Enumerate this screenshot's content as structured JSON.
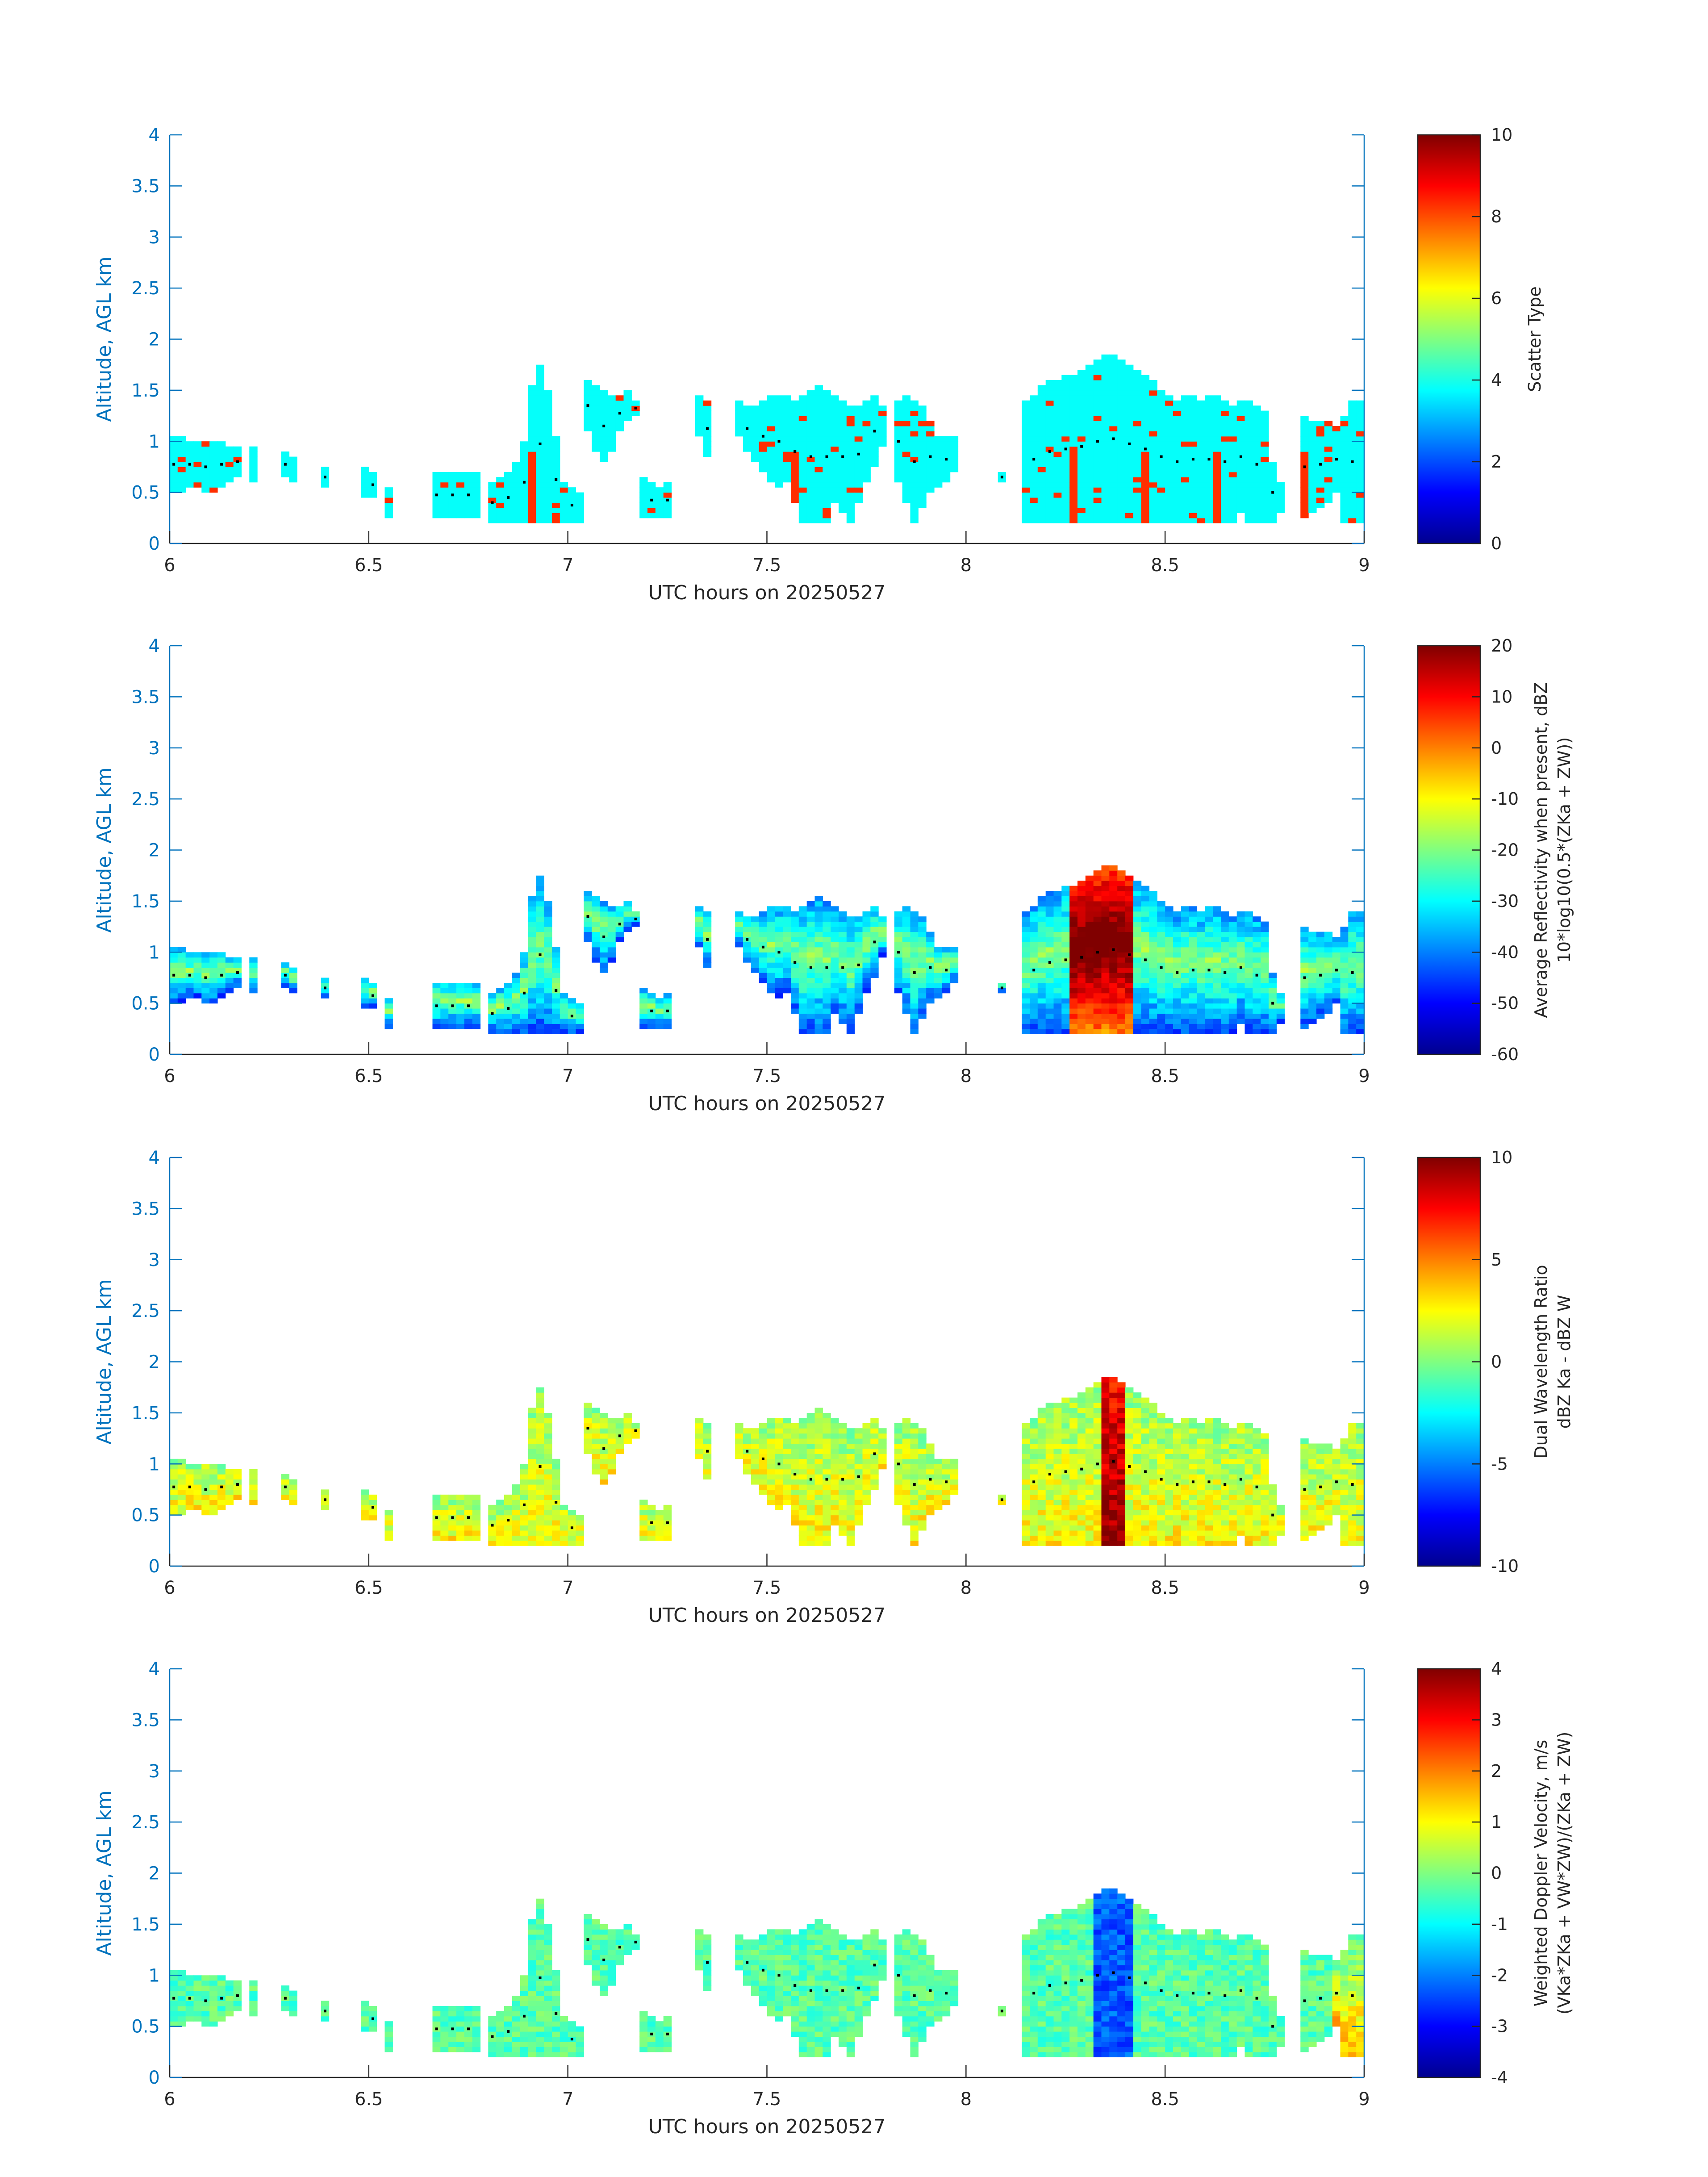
{
  "figure": {
    "panels": [
      {
        "id": "scatter-type",
        "ylabel": "Altitude, AGL km",
        "xlabel": "UTC hours on 20250527",
        "yticks": [
          "0",
          "0.5",
          "1",
          "1.5",
          "2",
          "2.5",
          "3",
          "3.5",
          "4"
        ],
        "xticks": [
          "6",
          "6.5",
          "7",
          "7.5",
          "8",
          "8.5",
          "9"
        ],
        "colorbar": {
          "label_lines": [
            "Scatter Type"
          ],
          "ticks": [
            "0",
            "2",
            "4",
            "6",
            "8",
            "10"
          ],
          "range": [
            0,
            10
          ]
        }
      },
      {
        "id": "reflectivity",
        "ylabel": "Altitude, AGL km",
        "xlabel": "UTC hours on 20250527",
        "yticks": [
          "0",
          "0.5",
          "1",
          "1.5",
          "2",
          "2.5",
          "3",
          "3.5",
          "4"
        ],
        "xticks": [
          "6",
          "6.5",
          "7",
          "7.5",
          "8",
          "8.5",
          "9"
        ],
        "colorbar": {
          "label_lines": [
            "Average Reflectivity when present, dBZ",
            "10*log10(0.5*(ZKa + ZW))"
          ],
          "ticks": [
            "-60",
            "-50",
            "-40",
            "-30",
            "-20",
            "-10",
            "0",
            "10",
            "20"
          ],
          "range": [
            -60,
            20
          ]
        }
      },
      {
        "id": "dwr",
        "ylabel": "Altitude, AGL km",
        "xlabel": "UTC hours on 20250527",
        "yticks": [
          "0",
          "0.5",
          "1",
          "1.5",
          "2",
          "2.5",
          "3",
          "3.5",
          "4"
        ],
        "xticks": [
          "6",
          "6.5",
          "7",
          "7.5",
          "8",
          "8.5",
          "9"
        ],
        "colorbar": {
          "label_lines": [
            "Dual Wavelength Ratio",
            "dBZ Ka - dBZ W"
          ],
          "ticks": [
            "-10",
            "-5",
            "0",
            "5",
            "10"
          ],
          "range": [
            -10,
            10
          ]
        }
      },
      {
        "id": "doppler",
        "ylabel": "Altitude, AGL km",
        "xlabel": "UTC hours on 20250527",
        "yticks": [
          "0",
          "0.5",
          "1",
          "1.5",
          "2",
          "2.5",
          "3",
          "3.5",
          "4"
        ],
        "xticks": [
          "6",
          "6.5",
          "7",
          "7.5",
          "8",
          "8.5",
          "9"
        ],
        "colorbar": {
          "label_lines": [
            "Weighted Doppler Velocity, m/s",
            "(VKa*ZKa + VW*ZW)/(ZKa + ZW)"
          ],
          "ticks": [
            "-4",
            "-3",
            "-2",
            "-1",
            "0",
            "1",
            "2",
            "3",
            "4"
          ],
          "range": [
            -4,
            4
          ]
        }
      }
    ]
  },
  "chart_data": [
    {
      "type": "heatmap",
      "xlabel": "UTC hours on 20250527",
      "ylabel": "Altitude, AGL km",
      "xlim": [
        6,
        9
      ],
      "ylim": [
        0,
        4
      ],
      "colormap": "jet",
      "clim": [
        0,
        10
      ],
      "colorbar_label": "Scatter Type",
      "dominant_value": 3.8,
      "notes_values": {
        "cloud": 3.8,
        "precip_columns": 8.3
      }
    },
    {
      "type": "heatmap",
      "xlabel": "UTC hours on 20250527",
      "ylabel": "Altitude, AGL km",
      "xlim": [
        6,
        9
      ],
      "ylim": [
        0,
        4
      ],
      "colormap": "jet",
      "clim": [
        -60,
        20
      ],
      "colorbar_label": "Average Reflectivity when present, dBZ"
    },
    {
      "type": "heatmap",
      "xlabel": "UTC hours on 20250527",
      "ylabel": "Altitude, AGL km",
      "xlim": [
        6,
        9
      ],
      "ylim": [
        0,
        4
      ],
      "colormap": "jet",
      "clim": [
        -10,
        10
      ],
      "colorbar_label": "Dual Wavelength Ratio"
    },
    {
      "type": "heatmap",
      "xlabel": "UTC hours on 20250527",
      "ylabel": "Altitude, AGL km",
      "xlim": [
        6,
        9
      ],
      "ylim": [
        0,
        4
      ],
      "colormap": "jet",
      "clim": [
        -4,
        4
      ],
      "colorbar_label": "Weighted Doppler Velocity, m/s"
    }
  ],
  "cloud_mask": {
    "time_step_hours": 0.02,
    "columns": [
      {
        "t": 6.0,
        "lo": 0.5,
        "hi": 1.05
      },
      {
        "t": 6.02,
        "lo": 0.5,
        "hi": 1.05
      },
      {
        "t": 6.04,
        "lo": 0.55,
        "hi": 1.0
      },
      {
        "t": 6.06,
        "lo": 0.55,
        "hi": 1.0
      },
      {
        "t": 6.08,
        "lo": 0.5,
        "hi": 1.0
      },
      {
        "t": 6.1,
        "lo": 0.5,
        "hi": 1.0
      },
      {
        "t": 6.12,
        "lo": 0.55,
        "hi": 1.0
      },
      {
        "t": 6.14,
        "lo": 0.6,
        "hi": 0.95
      },
      {
        "t": 6.16,
        "lo": 0.65,
        "hi": 0.95
      },
      {
        "t": 6.2,
        "lo": 0.6,
        "hi": 0.95
      },
      {
        "t": 6.28,
        "lo": 0.65,
        "hi": 0.9
      },
      {
        "t": 6.3,
        "lo": 0.6,
        "hi": 0.85
      },
      {
        "t": 6.38,
        "lo": 0.55,
        "hi": 0.75
      },
      {
        "t": 6.48,
        "lo": 0.45,
        "hi": 0.75
      },
      {
        "t": 6.5,
        "lo": 0.45,
        "hi": 0.7
      },
      {
        "t": 6.54,
        "lo": 0.25,
        "hi": 0.55
      },
      {
        "t": 6.66,
        "lo": 0.25,
        "hi": 0.7
      },
      {
        "t": 6.68,
        "lo": 0.25,
        "hi": 0.7
      },
      {
        "t": 6.7,
        "lo": 0.25,
        "hi": 0.7
      },
      {
        "t": 6.72,
        "lo": 0.25,
        "hi": 0.7
      },
      {
        "t": 6.74,
        "lo": 0.25,
        "hi": 0.7
      },
      {
        "t": 6.76,
        "lo": 0.25,
        "hi": 0.7
      },
      {
        "t": 6.8,
        "lo": 0.2,
        "hi": 0.6
      },
      {
        "t": 6.82,
        "lo": 0.2,
        "hi": 0.65
      },
      {
        "t": 6.84,
        "lo": 0.2,
        "hi": 0.7
      },
      {
        "t": 6.86,
        "lo": 0.2,
        "hi": 0.8
      },
      {
        "t": 6.88,
        "lo": 0.2,
        "hi": 1.0
      },
      {
        "t": 6.9,
        "lo": 0.2,
        "hi": 1.55
      },
      {
        "t": 6.92,
        "lo": 0.2,
        "hi": 1.75
      },
      {
        "t": 6.94,
        "lo": 0.2,
        "hi": 1.5
      },
      {
        "t": 6.96,
        "lo": 0.2,
        "hi": 1.05
      },
      {
        "t": 6.98,
        "lo": 0.2,
        "hi": 0.6
      },
      {
        "t": 7.0,
        "lo": 0.2,
        "hi": 0.55
      },
      {
        "t": 7.02,
        "lo": 0.2,
        "hi": 0.5
      },
      {
        "t": 7.04,
        "lo": 1.1,
        "hi": 1.6
      },
      {
        "t": 7.06,
        "lo": 0.9,
        "hi": 1.55
      },
      {
        "t": 7.08,
        "lo": 0.8,
        "hi": 1.5
      },
      {
        "t": 7.1,
        "lo": 0.9,
        "hi": 1.45
      },
      {
        "t": 7.12,
        "lo": 1.1,
        "hi": 1.45
      },
      {
        "t": 7.14,
        "lo": 1.2,
        "hi": 1.5
      },
      {
        "t": 7.16,
        "lo": 1.25,
        "hi": 1.4
      },
      {
        "t": 7.18,
        "lo": 0.25,
        "hi": 0.65
      },
      {
        "t": 7.2,
        "lo": 0.25,
        "hi": 0.6
      },
      {
        "t": 7.22,
        "lo": 0.25,
        "hi": 0.55
      },
      {
        "t": 7.24,
        "lo": 0.25,
        "hi": 0.6
      },
      {
        "t": 7.32,
        "lo": 1.05,
        "hi": 1.45
      },
      {
        "t": 7.34,
        "lo": 0.85,
        "hi": 1.4
      },
      {
        "t": 7.42,
        "lo": 1.05,
        "hi": 1.4
      },
      {
        "t": 7.44,
        "lo": 0.9,
        "hi": 1.35
      },
      {
        "t": 7.46,
        "lo": 0.8,
        "hi": 1.35
      },
      {
        "t": 7.48,
        "lo": 0.7,
        "hi": 1.4
      },
      {
        "t": 7.5,
        "lo": 0.6,
        "hi": 1.45
      },
      {
        "t": 7.52,
        "lo": 0.55,
        "hi": 1.45
      },
      {
        "t": 7.54,
        "lo": 0.6,
        "hi": 1.45
      },
      {
        "t": 7.56,
        "lo": 0.4,
        "hi": 1.4
      },
      {
        "t": 7.58,
        "lo": 0.2,
        "hi": 1.45
      },
      {
        "t": 7.6,
        "lo": 0.2,
        "hi": 1.5
      },
      {
        "t": 7.62,
        "lo": 0.2,
        "hi": 1.55
      },
      {
        "t": 7.64,
        "lo": 0.2,
        "hi": 1.5
      },
      {
        "t": 7.66,
        "lo": 0.4,
        "hi": 1.45
      },
      {
        "t": 7.68,
        "lo": 0.3,
        "hi": 1.4
      },
      {
        "t": 7.7,
        "lo": 0.2,
        "hi": 1.35
      },
      {
        "t": 7.72,
        "lo": 0.4,
        "hi": 1.35
      },
      {
        "t": 7.74,
        "lo": 0.6,
        "hi": 1.4
      },
      {
        "t": 7.76,
        "lo": 0.75,
        "hi": 1.45
      },
      {
        "t": 7.78,
        "lo": 0.95,
        "hi": 1.35
      },
      {
        "t": 7.82,
        "lo": 0.6,
        "hi": 1.4
      },
      {
        "t": 7.84,
        "lo": 0.4,
        "hi": 1.45
      },
      {
        "t": 7.86,
        "lo": 0.2,
        "hi": 1.4
      },
      {
        "t": 7.88,
        "lo": 0.35,
        "hi": 1.35
      },
      {
        "t": 7.9,
        "lo": 0.5,
        "hi": 1.2
      },
      {
        "t": 7.92,
        "lo": 0.55,
        "hi": 1.05
      },
      {
        "t": 7.94,
        "lo": 0.6,
        "hi": 1.05
      },
      {
        "t": 7.96,
        "lo": 0.7,
        "hi": 1.05
      },
      {
        "t": 8.08,
        "lo": 0.6,
        "hi": 0.7
      },
      {
        "t": 8.14,
        "lo": 0.2,
        "hi": 1.4
      },
      {
        "t": 8.16,
        "lo": 0.2,
        "hi": 1.45
      },
      {
        "t": 8.18,
        "lo": 0.2,
        "hi": 1.55
      },
      {
        "t": 8.2,
        "lo": 0.2,
        "hi": 1.6
      },
      {
        "t": 8.22,
        "lo": 0.2,
        "hi": 1.6
      },
      {
        "t": 8.24,
        "lo": 0.2,
        "hi": 1.65
      },
      {
        "t": 8.26,
        "lo": 0.2,
        "hi": 1.65
      },
      {
        "t": 8.28,
        "lo": 0.2,
        "hi": 1.7
      },
      {
        "t": 8.3,
        "lo": 0.2,
        "hi": 1.75
      },
      {
        "t": 8.32,
        "lo": 0.2,
        "hi": 1.8
      },
      {
        "t": 8.34,
        "lo": 0.2,
        "hi": 1.85
      },
      {
        "t": 8.36,
        "lo": 0.2,
        "hi": 1.85
      },
      {
        "t": 8.38,
        "lo": 0.2,
        "hi": 1.8
      },
      {
        "t": 8.4,
        "lo": 0.2,
        "hi": 1.75
      },
      {
        "t": 8.42,
        "lo": 0.2,
        "hi": 1.7
      },
      {
        "t": 8.44,
        "lo": 0.2,
        "hi": 1.65
      },
      {
        "t": 8.46,
        "lo": 0.2,
        "hi": 1.6
      },
      {
        "t": 8.48,
        "lo": 0.2,
        "hi": 1.5
      },
      {
        "t": 8.5,
        "lo": 0.2,
        "hi": 1.45
      },
      {
        "t": 8.52,
        "lo": 0.2,
        "hi": 1.4
      },
      {
        "t": 8.54,
        "lo": 0.2,
        "hi": 1.45
      },
      {
        "t": 8.56,
        "lo": 0.2,
        "hi": 1.45
      },
      {
        "t": 8.58,
        "lo": 0.2,
        "hi": 1.4
      },
      {
        "t": 8.6,
        "lo": 0.2,
        "hi": 1.45
      },
      {
        "t": 8.62,
        "lo": 0.2,
        "hi": 1.45
      },
      {
        "t": 8.64,
        "lo": 0.2,
        "hi": 1.4
      },
      {
        "t": 8.66,
        "lo": 0.2,
        "hi": 1.35
      },
      {
        "t": 8.68,
        "lo": 0.3,
        "hi": 1.4
      },
      {
        "t": 8.7,
        "lo": 0.2,
        "hi": 1.4
      },
      {
        "t": 8.72,
        "lo": 0.2,
        "hi": 1.35
      },
      {
        "t": 8.74,
        "lo": 0.2,
        "hi": 1.3
      },
      {
        "t": 8.76,
        "lo": 0.2,
        "hi": 0.8
      },
      {
        "t": 8.78,
        "lo": 0.3,
        "hi": 0.6
      },
      {
        "t": 8.84,
        "lo": 0.25,
        "hi": 1.25
      },
      {
        "t": 8.86,
        "lo": 0.3,
        "hi": 1.2
      },
      {
        "t": 8.88,
        "lo": 0.35,
        "hi": 1.2
      },
      {
        "t": 8.9,
        "lo": 0.4,
        "hi": 1.2
      },
      {
        "t": 8.92,
        "lo": 0.5,
        "hi": 1.15
      },
      {
        "t": 8.94,
        "lo": 0.2,
        "hi": 1.25
      },
      {
        "t": 8.96,
        "lo": 0.2,
        "hi": 1.4
      },
      {
        "t": 8.98,
        "lo": 0.2,
        "hi": 1.4
      }
    ]
  }
}
